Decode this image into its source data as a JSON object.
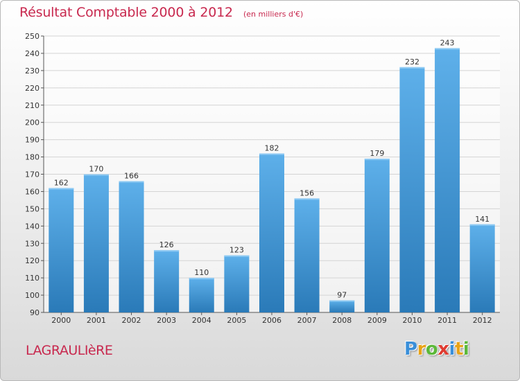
{
  "header": {
    "title": "Résultat Comptable 2000 à 2012",
    "subtitle": "(en milliers d'€)"
  },
  "footer": {
    "place": "LAGRAULIèRE",
    "logo": {
      "letters": [
        "P",
        "r",
        "o",
        "x",
        "i",
        "t",
        "i"
      ],
      "colors": [
        "#3a8fd9",
        "#e8a317",
        "#5cb83a",
        "#e03c31",
        "#3a8fd9",
        "#e8a317",
        "#5cb83a"
      ]
    }
  },
  "colors": {
    "bar_top": "#5eb0ea",
    "bar_bottom": "#2a7ab8",
    "title": "#c8284e",
    "grid": "#d4d4d4"
  },
  "chart_data": {
    "type": "bar",
    "title": "Résultat Comptable 2000 à 2012",
    "subtitle": "(en milliers d'€)",
    "xlabel": "",
    "ylabel": "",
    "categories": [
      "2000",
      "2001",
      "2002",
      "2003",
      "2004",
      "2005",
      "2006",
      "2007",
      "2008",
      "2009",
      "2010",
      "2011",
      "2012"
    ],
    "values": [
      162,
      170,
      166,
      126,
      110,
      123,
      182,
      156,
      97,
      179,
      232,
      243,
      141
    ],
    "ylim": [
      90,
      250
    ],
    "yticks": [
      90,
      100,
      110,
      120,
      130,
      140,
      150,
      160,
      170,
      180,
      190,
      200,
      210,
      220,
      230,
      240,
      250
    ],
    "grid": true,
    "data_labels": true
  }
}
